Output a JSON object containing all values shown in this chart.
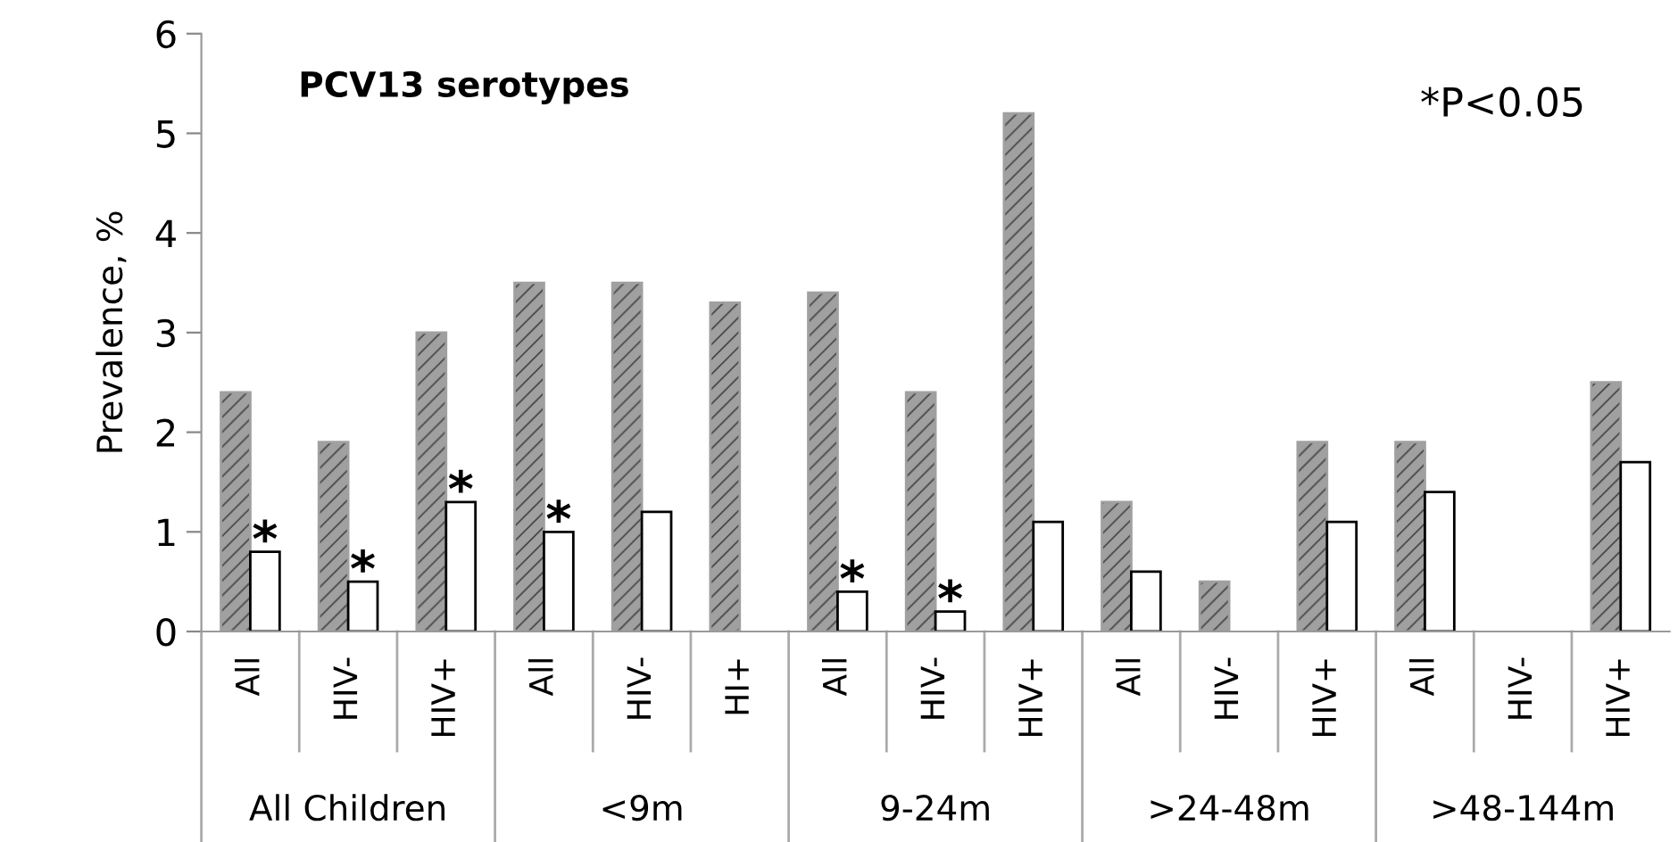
{
  "chart_data": {
    "type": "bar",
    "title": "PCV13 serotypes",
    "ylabel": "Prevalence, %",
    "categories": [
      "All",
      "HIV-",
      "HIV+",
      "All",
      "HIV-",
      "HI+",
      "All",
      "HIV-",
      "HIV+",
      "All",
      "HIV-",
      "HIV+",
      "All",
      "HIV-",
      "HIV+"
    ],
    "series": [
      {
        "color": "#a0a0a0",
        "values": [
          2.4,
          1.9,
          3.0,
          3.5,
          3.5,
          3.3,
          3.4,
          2.4,
          5.2,
          1.3,
          0.5,
          1.9,
          1.9,
          null,
          2.5
        ]
      },
      {
        "color": "#ffffff",
        "values": [
          0.8,
          0.5,
          1.3,
          1.0,
          1.2,
          null,
          0.4,
          0.2,
          1.1,
          0.6,
          null,
          1.1,
          1.4,
          null,
          1.7
        ],
        "value_labels": [
          "*",
          "*",
          "*",
          "*",
          null,
          null,
          "*",
          "*",
          null,
          null,
          null,
          null,
          null,
          null,
          null
        ]
      }
    ],
    "annotations": [
      "All Children",
      "<9m",
      "9-24m",
      ">24-48m",
      ">48-144m",
      "*P<0.05"
    ],
    "ylim": [
      0,
      6
    ],
    "yticks": [
      0,
      1,
      2,
      3,
      4,
      5,
      6
    ],
    "grid": false
  }
}
